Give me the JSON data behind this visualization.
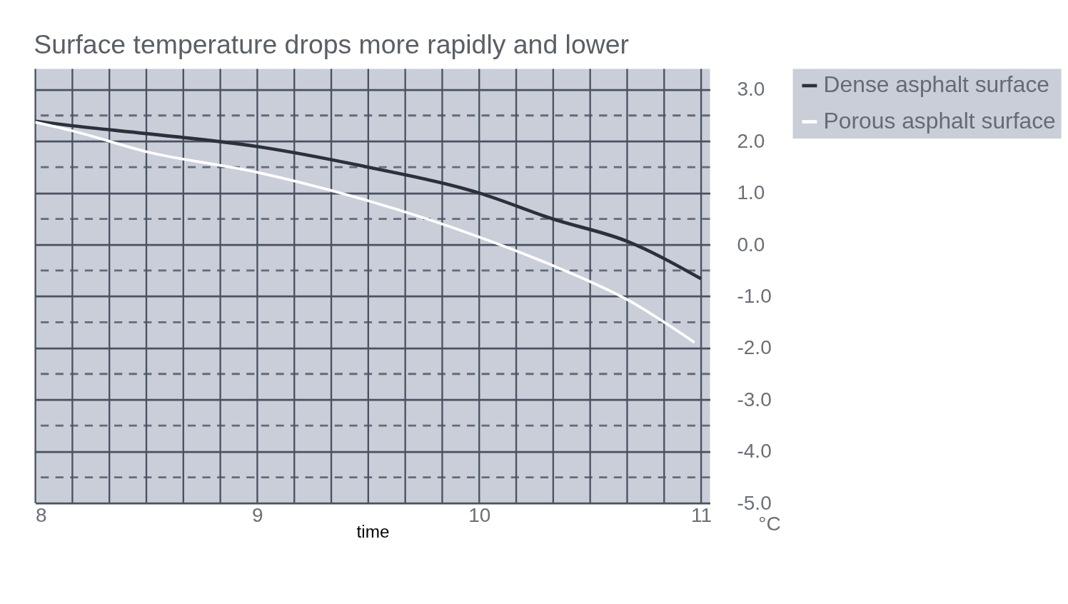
{
  "chart_data": {
    "type": "line",
    "title": "Surface temperature drops more rapidly and lower",
    "xlabel": "time",
    "ylabel": "°C",
    "x": [
      8,
      8.17,
      8.5,
      9,
      9.5,
      10,
      10.33,
      10.67,
      11
    ],
    "series": [
      {
        "name": "Dense asphalt surface",
        "color": "#2b313b",
        "values": [
          2.39,
          2.3,
          2.15,
          1.9,
          1.5,
          1.0,
          0.5,
          0.06,
          -0.66
        ]
      },
      {
        "name": "Porous asphalt surface",
        "color": "#ffffff",
        "x": [
          8,
          8.17,
          8.5,
          9,
          9.5,
          10,
          10.33,
          10.67,
          10.97
        ],
        "values": [
          2.37,
          2.2,
          1.8,
          1.4,
          0.85,
          0.15,
          -0.4,
          -1.07,
          -1.89
        ]
      }
    ],
    "xlim": [
      8,
      11.04
    ],
    "xticks": [
      8,
      9,
      10,
      11
    ],
    "ylim": [
      -5,
      3.4
    ],
    "yticks": [
      {
        "value": -5,
        "label": "-5.0"
      },
      {
        "value": -4,
        "label": "-4.0"
      },
      {
        "value": -3,
        "label": "-3.0"
      },
      {
        "value": -2,
        "label": "-2.0"
      },
      {
        "value": -1,
        "label": "-1.0"
      },
      {
        "value": 0,
        "label": "0.0"
      },
      {
        "value": 1,
        "label": "1.0"
      },
      {
        "value": 2,
        "label": "2.0"
      },
      {
        "value": 3,
        "label": "3.0"
      }
    ],
    "grid": true,
    "legend": "right",
    "marker": "none",
    "line_style": "solid"
  }
}
